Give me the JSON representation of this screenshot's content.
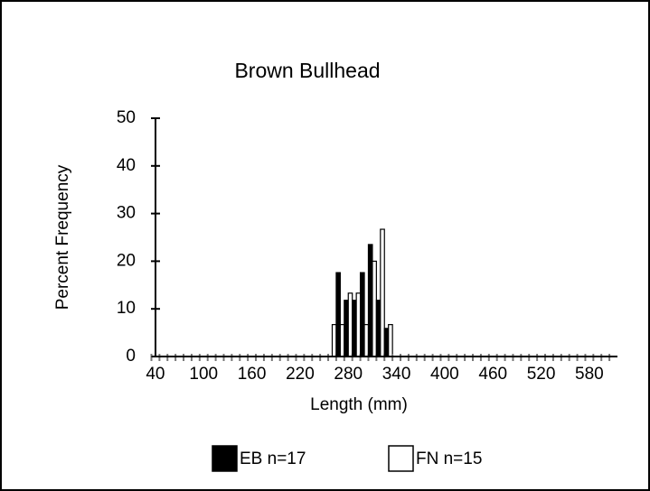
{
  "chart_data": {
    "type": "bar",
    "title": "Brown Bullhead",
    "x_label": "Length (mm)",
    "y_label": "Percent Frequency",
    "categories": [
      "40",
      null,
      null,
      null,
      null,
      null,
      "100",
      null,
      null,
      null,
      null,
      null,
      "160",
      null,
      null,
      null,
      null,
      null,
      "220",
      null,
      null,
      null,
      null,
      null,
      "280",
      null,
      null,
      null,
      null,
      null,
      "340",
      null,
      null,
      null,
      null,
      null,
      "400",
      null,
      null,
      null,
      null,
      null,
      "460",
      null,
      null,
      null,
      null,
      null,
      "520",
      null,
      null,
      null,
      null,
      null,
      "580",
      null,
      null,
      null
    ],
    "series": [
      {
        "name": "EB n=17",
        "color": "#000000",
        "values": [
          0,
          0,
          0,
          0,
          0,
          0,
          0,
          0,
          0,
          0,
          0,
          0,
          0,
          0,
          0,
          0,
          0,
          0,
          0,
          0,
          0,
          0,
          0,
          17.6,
          11.8,
          11.8,
          17.6,
          23.5,
          11.8,
          5.9,
          0,
          0,
          0,
          0,
          0,
          0,
          0,
          0,
          0,
          0,
          0,
          0,
          0,
          0,
          0,
          0,
          0,
          0,
          0,
          0,
          0,
          0,
          0,
          0,
          0,
          0,
          0,
          0
        ]
      },
      {
        "name": "FN n=15",
        "color": "#ffffff",
        "values": [
          0,
          0,
          0,
          0,
          0,
          0,
          0,
          0,
          0,
          0,
          0,
          0,
          0,
          0,
          0,
          0,
          0,
          0,
          0,
          0,
          0,
          0,
          6.7,
          6.7,
          13.3,
          13.3,
          6.7,
          20,
          26.7,
          6.7,
          0,
          0,
          0,
          0,
          0,
          0,
          0,
          0,
          0,
          0,
          0,
          0,
          0,
          0,
          0,
          0,
          0,
          0,
          0,
          0,
          0,
          0,
          0,
          0,
          0,
          0,
          0,
          0
        ]
      }
    ],
    "ylim": [
      0,
      50
    ],
    "yticks": [
      0,
      10,
      20,
      30,
      40,
      50
    ],
    "grid": false,
    "legend": "bottom"
  }
}
